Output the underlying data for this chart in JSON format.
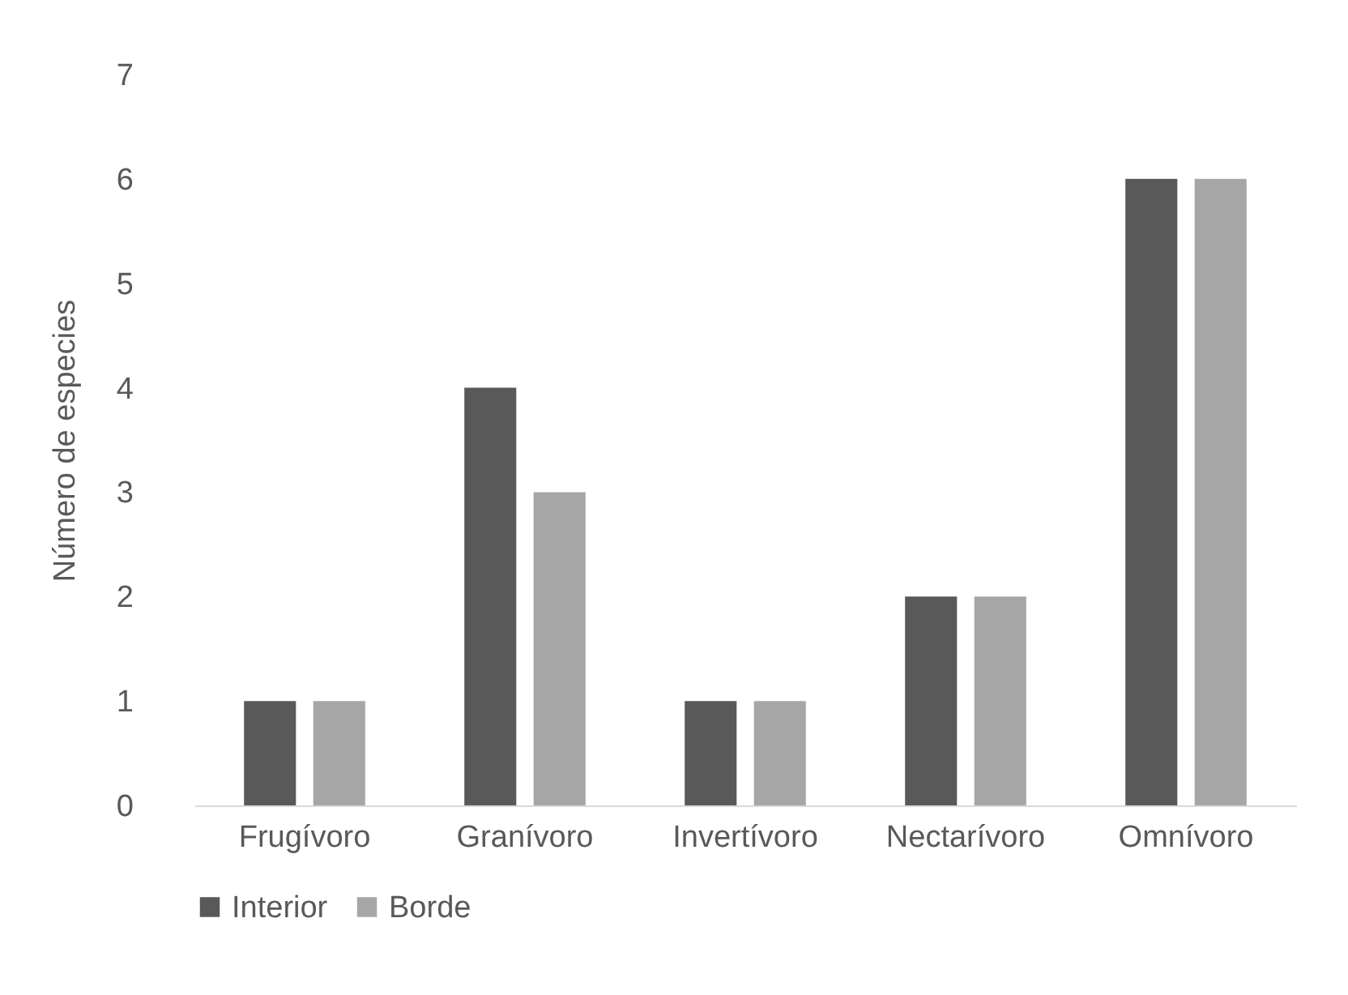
{
  "chart_data": {
    "type": "bar",
    "ylabel": "Número de especies",
    "categories": [
      "Frugívoro",
      "Granívoro",
      "Invertívoro",
      "Nectarívoro",
      "Omnívoro"
    ],
    "series": [
      {
        "name": "Interior",
        "color": "#595959",
        "values": [
          1,
          4,
          1,
          2,
          6
        ]
      },
      {
        "name": "Borde",
        "color": "#a6a6a6",
        "values": [
          1,
          3,
          1,
          2,
          6
        ]
      }
    ],
    "ylim": [
      0,
      7
    ],
    "yticks": [
      0,
      1,
      2,
      3,
      4,
      5,
      6,
      7
    ],
    "grid": false,
    "legend": "bottom"
  }
}
